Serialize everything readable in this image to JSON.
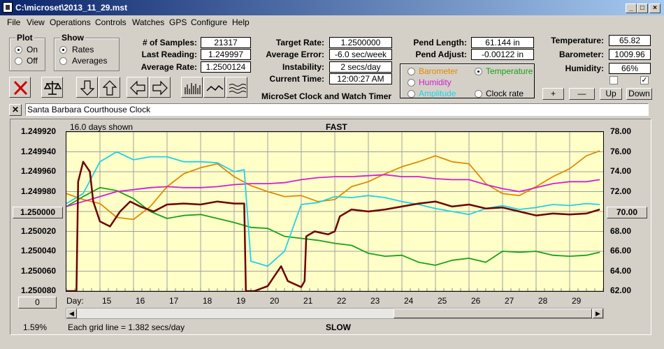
{
  "window": {
    "title": "C:\\microset\\2013_11_29.mst",
    "controls": [
      "_",
      "□",
      "×"
    ]
  },
  "menu": [
    "File",
    "View",
    "Operations",
    "Controls",
    "Watches",
    "GPS",
    "Configure",
    "Help"
  ],
  "plot_group": {
    "title": "Plot",
    "on": "On",
    "off": "Off",
    "selected": "On"
  },
  "show_group": {
    "title": "Show",
    "rates": "Rates",
    "averages": "Averages",
    "selected": "Rates"
  },
  "stats": {
    "samples_label": "# of Samples:",
    "samples": "21317",
    "last_reading_label": "Last Reading:",
    "last_reading": "1.249997",
    "avg_rate_label": "Average Rate:",
    "avg_rate": "1.2500124",
    "target_rate_label": "Target Rate:",
    "target_rate": "1.2500000",
    "avg_error_label": "Average Error:",
    "avg_error": "-6.0 sec/week",
    "instability_label": "Instability:",
    "instability": "2 secs/day",
    "current_time_label": "Current Time:",
    "current_time": "12:00:27 AM",
    "app_caption": "MicroSet Clock and Watch Timer",
    "pend_length_label": "Pend Length:",
    "pend_length": "61.144 in",
    "pend_adjust_label": "Pend Adjust:",
    "pend_adjust": "-0.00122 in",
    "temperature_label": "Temperature:",
    "temperature": "65.82",
    "barometer_label": "Barometer:",
    "barometer": "1009.96",
    "humidity_label": "Humidity:",
    "humidity": "66%"
  },
  "sensor_options": {
    "barometer": "Barometer",
    "temperature": "Temperature",
    "humidity": "Humidity",
    "amplitude": "Amplitude",
    "clock_rate": "Clock rate",
    "selected": "Temperature"
  },
  "adjust_buttons": {
    "plus": "+",
    "minus": "—",
    "up": "Up",
    "down": "Down"
  },
  "colors": {
    "barometer": "#e08a00",
    "temperature": "#1aa01a",
    "humidity": "#d21ed2",
    "amplitude": "#1ed2e6",
    "rate": "#6e0000",
    "plot_bg": "#ffffc8"
  },
  "clock_name": "Santa Barbara Courthouse Clock",
  "chart": {
    "days_shown": "16.0 days shown",
    "top_label": "FAST",
    "bottom_label": "SLOW",
    "grid_note": "Each grid line = 1.382 secs/day",
    "percent": "1.59%",
    "day_label": "Day:",
    "left_center": "1.250000",
    "right_center": "70.00",
    "zero_button": "0"
  },
  "chart_data": {
    "type": "line",
    "xlabel": "Day:",
    "x_ticks": [
      "15",
      "16",
      "17",
      "18",
      "19",
      "20",
      "21",
      "22",
      "23",
      "24",
      "25",
      "26",
      "27",
      "28",
      "29"
    ],
    "xlim": [
      14.0,
      30.0
    ],
    "y_left_ticks": [
      "1.249920",
      "1.249940",
      "1.249960",
      "1.249980",
      "1.250000",
      "1.250020",
      "1.250040",
      "1.250060",
      "1.250080"
    ],
    "y_left_lim": [
      1.24992,
      1.25008
    ],
    "y_left_inverted": true,
    "y_right_ticks": [
      "78.00",
      "76.00",
      "74.00",
      "72.00",
      "70.00",
      "68.00",
      "66.00",
      "64.00",
      "62.00"
    ],
    "y_right_lim": [
      62.0,
      78.0
    ],
    "grid": true,
    "series": [
      {
        "name": "Barometer",
        "color": "#e08a00",
        "axis": "right",
        "x": [
          14.0,
          14.5,
          15.0,
          15.5,
          16.0,
          16.5,
          17.0,
          17.5,
          18.0,
          18.5,
          19.0,
          19.5,
          20.0,
          20.5,
          21.0,
          21.5,
          22.0,
          22.5,
          23.0,
          23.5,
          24.0,
          24.5,
          25.0,
          25.5,
          26.0,
          26.5,
          27.0,
          27.5,
          28.0,
          28.5,
          29.0,
          29.5,
          29.9
        ],
        "y": [
          71.8,
          71.2,
          70.8,
          69.4,
          69.2,
          70.5,
          72.5,
          73.8,
          74.4,
          74.8,
          73.5,
          72.6,
          72.0,
          71.5,
          71.6,
          71.0,
          71.2,
          72.5,
          73.0,
          73.8,
          74.5,
          75.0,
          75.6,
          75.0,
          74.8,
          72.8,
          71.8,
          71.6,
          72.5,
          73.5,
          74.3,
          75.6,
          76.1
        ]
      },
      {
        "name": "Temperature",
        "color": "#1aa01a",
        "axis": "right",
        "x": [
          14.0,
          14.5,
          15.0,
          15.5,
          16.0,
          16.5,
          17.0,
          17.5,
          18.0,
          18.5,
          19.0,
          19.5,
          20.0,
          20.5,
          21.0,
          21.5,
          22.0,
          22.5,
          23.0,
          23.5,
          24.0,
          24.5,
          25.0,
          25.5,
          26.0,
          26.5,
          27.0,
          27.5,
          28.0,
          28.5,
          29.0,
          29.5,
          29.9
        ],
        "y": [
          70.5,
          71.5,
          72.4,
          72.1,
          71.3,
          70.0,
          69.3,
          69.6,
          69.7,
          69.3,
          68.9,
          68.4,
          68.3,
          67.5,
          67.3,
          67.1,
          66.8,
          66.6,
          65.8,
          65.5,
          65.6,
          64.9,
          64.6,
          65.1,
          65.3,
          64.9,
          66.0,
          65.9,
          66.0,
          65.6,
          65.5,
          65.6,
          65.9
        ]
      },
      {
        "name": "Humidity",
        "color": "#d21ed2",
        "axis": "left",
        "x": [
          14.0,
          14.5,
          15.0,
          15.5,
          16.0,
          16.5,
          17.0,
          17.5,
          18.0,
          18.5,
          19.0,
          19.5,
          20.0,
          20.5,
          21.0,
          21.5,
          22.0,
          22.5,
          23.0,
          23.5,
          24.0,
          24.5,
          25.0,
          25.5,
          26.0,
          26.5,
          27.0,
          27.5,
          28.0,
          28.5,
          29.0,
          29.5,
          29.9
        ],
        "y": [
          1.249995,
          1.24999,
          1.249985,
          1.24998,
          1.249978,
          1.249976,
          1.249975,
          1.249976,
          1.249976,
          1.249975,
          1.249973,
          1.249972,
          1.249972,
          1.249971,
          1.249968,
          1.249966,
          1.249965,
          1.249965,
          1.249964,
          1.249963,
          1.249965,
          1.249965,
          1.249967,
          1.249968,
          1.249968,
          1.249973,
          1.249977,
          1.24998,
          1.249976,
          1.249972,
          1.24997,
          1.24997,
          1.249968
        ]
      },
      {
        "name": "Amplitude",
        "color": "#1ed2e6",
        "axis": "left",
        "x": [
          14.0,
          14.5,
          15.0,
          15.5,
          16.0,
          16.5,
          17.0,
          17.5,
          18.0,
          18.5,
          19.0,
          19.3,
          19.5,
          20.0,
          20.5,
          21.0,
          21.5,
          22.0,
          22.5,
          23.0,
          23.5,
          24.0,
          24.5,
          25.0,
          25.5,
          26.0,
          26.5,
          27.0,
          27.5,
          28.0,
          28.5,
          29.0,
          29.5,
          29.9
        ],
        "y": [
          1.249992,
          1.249982,
          1.24995,
          1.24994,
          1.249948,
          1.249945,
          1.249945,
          1.24995,
          1.24995,
          1.249951,
          1.24996,
          1.249958,
          1.25005,
          1.250055,
          1.25004,
          1.249993,
          1.249991,
          1.249985,
          1.249986,
          1.249984,
          1.249986,
          1.24999,
          1.249993,
          1.249997,
          1.25,
          1.250003,
          1.249997,
          1.249994,
          1.249998,
          1.249996,
          1.249993,
          1.249994,
          1.249992,
          1.249993
        ]
      },
      {
        "name": "Rate",
        "color": "#6e0000",
        "axis": "left",
        "x": [
          14.0,
          14.3,
          14.35,
          14.5,
          14.7,
          14.8,
          15.0,
          15.3,
          15.6,
          15.9,
          16.2,
          16.6,
          17.0,
          17.5,
          18.0,
          18.5,
          19.0,
          19.3,
          19.35,
          19.4,
          19.6,
          20.0,
          20.2,
          20.4,
          20.6,
          21.0,
          21.1,
          21.15,
          21.4,
          21.8,
          22.0,
          22.15,
          22.5,
          23.0,
          23.5,
          24.0,
          24.5,
          25.0,
          25.5,
          26.0,
          26.5,
          27.0,
          27.5,
          28.0,
          28.5,
          29.0,
          29.5,
          29.9
        ],
        "y": [
          1.25008,
          1.25008,
          1.24997,
          1.24995,
          1.24996,
          1.24999,
          1.25001,
          1.250015,
          1.25,
          1.24999,
          1.249995,
          1.25,
          1.249993,
          1.249992,
          1.249993,
          1.24999,
          1.249992,
          1.249992,
          1.25008,
          1.25008,
          1.25008,
          1.250075,
          1.250065,
          1.250055,
          1.25007,
          1.250076,
          1.25007,
          1.250025,
          1.25002,
          1.250023,
          1.25002,
          1.250005,
          1.249998,
          1.25,
          1.249998,
          1.249995,
          1.249992,
          1.24999,
          1.249995,
          1.249993,
          1.249997,
          1.249996,
          1.25,
          1.250004,
          1.250002,
          1.250003,
          1.250002,
          1.249998
        ]
      }
    ]
  }
}
